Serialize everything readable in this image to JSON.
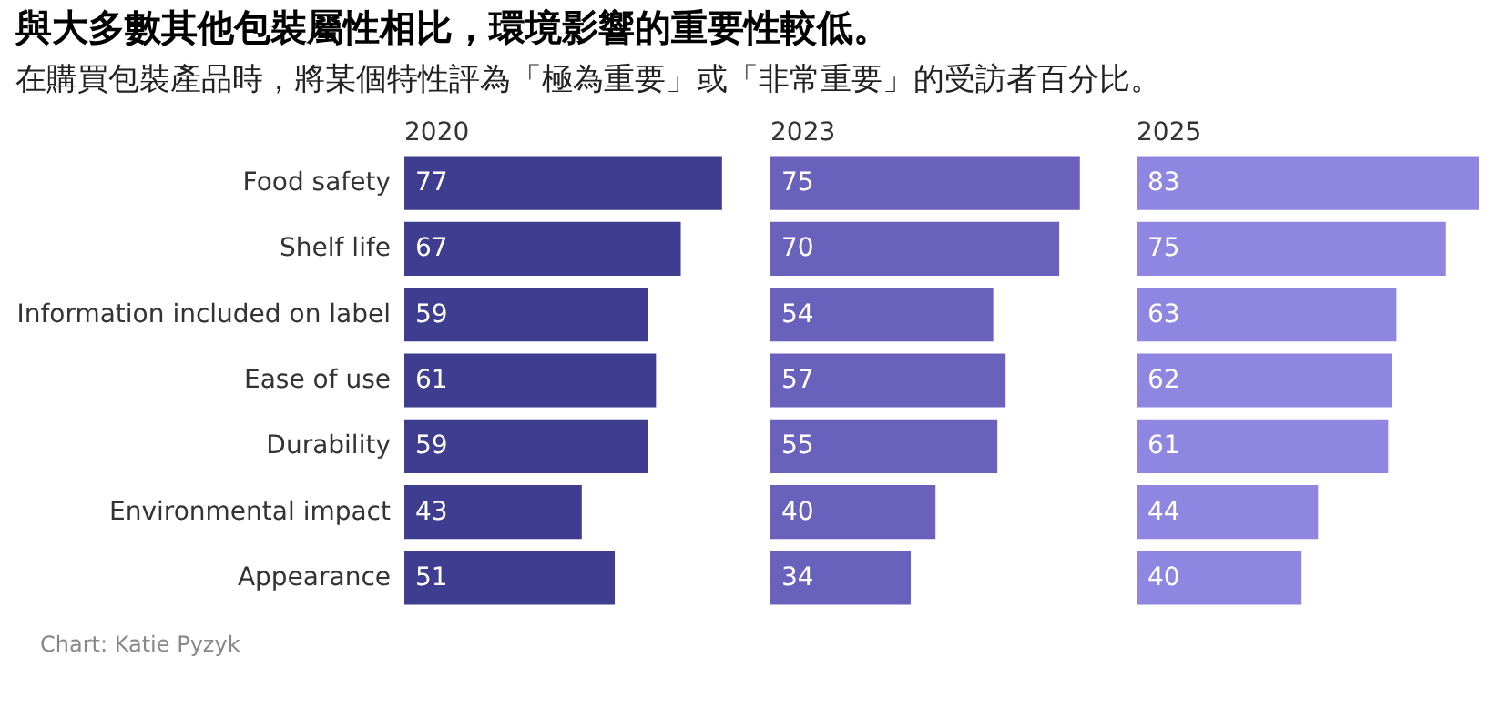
{
  "chart_data": [
    {
      "type": "bar",
      "orientation": "horizontal",
      "title": "與大多數其他包裝屬性相比，環境影響的重要性較低。",
      "subtitle": "在購買包裝產品時，將某個特性評為「極為重要」或「非常重要」的受訪者百分比。",
      "annotations": [
        "Chart: Katie Pyzyk"
      ],
      "categories": [
        "Food safety",
        "Shelf life",
        "Information included on label",
        "Ease of use",
        "Durability",
        "Environmental impact",
        "Appearance"
      ],
      "series": [
        {
          "name": "2020",
          "color": "#3f3d8f",
          "values": [
            77,
            67,
            59,
            61,
            59,
            43,
            51
          ]
        }
      ],
      "data_labels": true,
      "tick_labels": "y"
    },
    {
      "type": "bar",
      "orientation": "horizontal",
      "series": [
        {
          "name": "2023",
          "color": "#6a61bd",
          "values": [
            75,
            70,
            54,
            57,
            55,
            40,
            34
          ]
        }
      ],
      "data_labels": true,
      "tick_labels": false
    },
    {
      "type": "bar",
      "orientation": "horizontal",
      "series": [
        {
          "name": "2025",
          "color": "#8e86e0",
          "values": [
            83,
            75,
            63,
            62,
            61,
            44,
            40
          ]
        }
      ],
      "data_labels": true,
      "tick_labels": false
    }
  ]
}
